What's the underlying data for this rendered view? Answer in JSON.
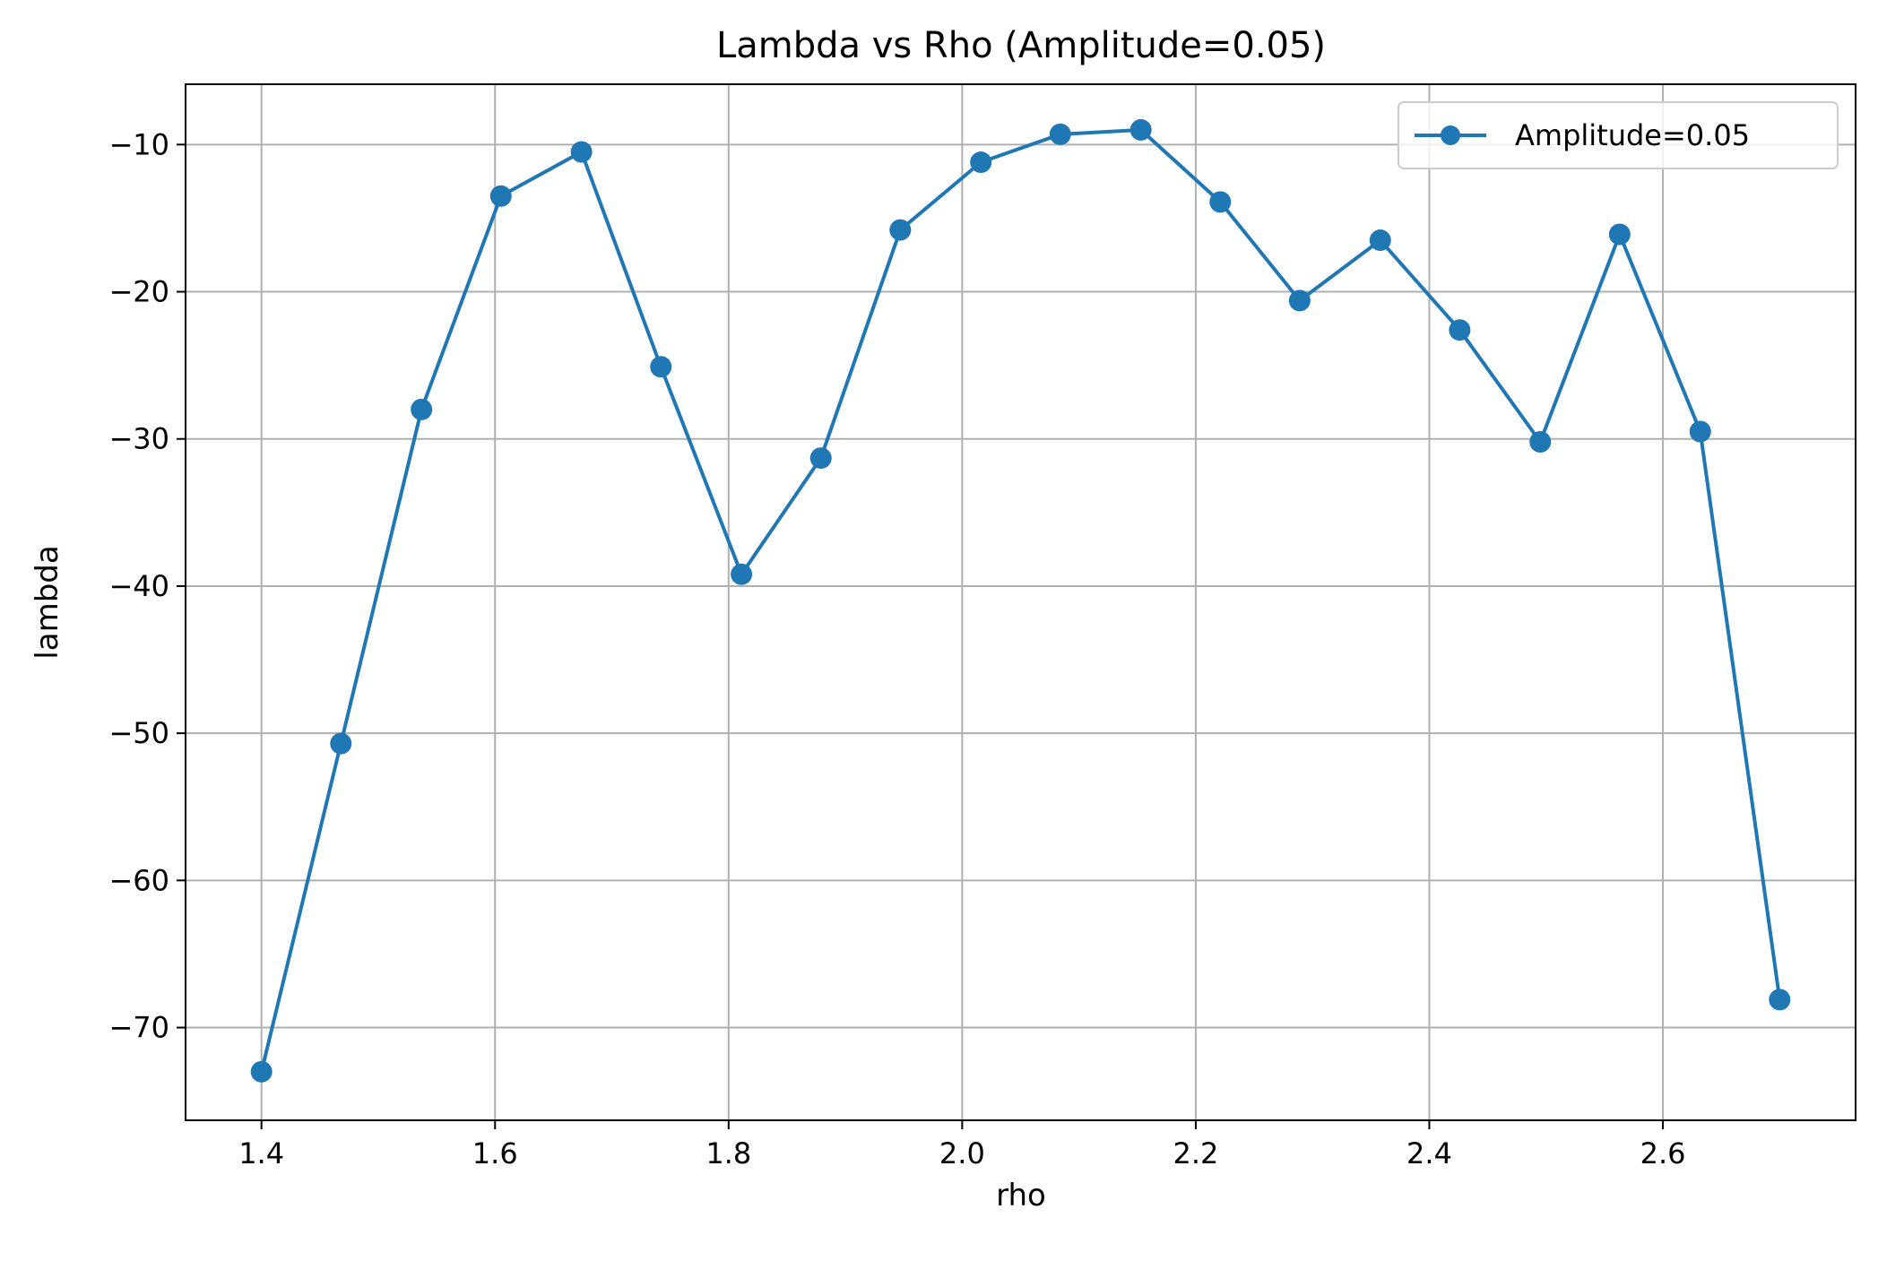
{
  "chart_data": {
    "type": "line",
    "title": "Lambda vs Rho (Amplitude=0.05)",
    "xlabel": "rho",
    "ylabel": "lambda",
    "xlim": [
      1.335,
      2.765
    ],
    "ylim": [
      -76.3,
      -5.9
    ],
    "xticks": [
      1.4,
      1.6,
      1.8,
      2.0,
      2.2,
      2.4,
      2.6
    ],
    "xtick_labels": [
      "1.4",
      "1.6",
      "1.8",
      "2.0",
      "2.2",
      "2.4",
      "2.6"
    ],
    "yticks": [
      -10,
      -20,
      -30,
      -40,
      -50,
      -60,
      -70
    ],
    "ytick_labels": [
      "−10",
      "−20",
      "−30",
      "−40",
      "−50",
      "−60",
      "−70"
    ],
    "grid": true,
    "legend_position": "top-right",
    "series": [
      {
        "name": "Amplitude=0.05",
        "color": "#1f77b4",
        "marker": "circle",
        "x": [
          1.4,
          1.468,
          1.537,
          1.605,
          1.674,
          1.742,
          1.811,
          1.879,
          1.947,
          2.016,
          2.084,
          2.153,
          2.221,
          2.289,
          2.358,
          2.426,
          2.495,
          2.563,
          2.632,
          2.7
        ],
        "y": [
          -73.0,
          -50.7,
          -28.0,
          -13.5,
          -10.5,
          -25.1,
          -39.2,
          -31.3,
          -15.8,
          -11.2,
          -9.3,
          -9.0,
          -13.9,
          -20.6,
          -16.5,
          -22.6,
          -30.2,
          -16.1,
          -29.5,
          -68.1
        ]
      }
    ]
  }
}
